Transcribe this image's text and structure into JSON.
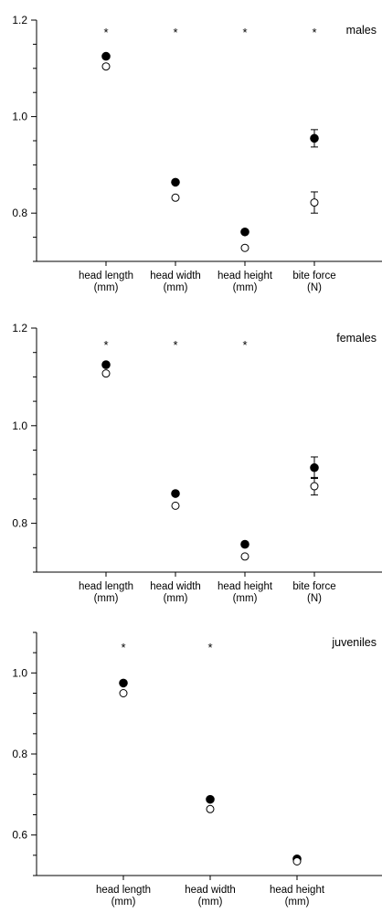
{
  "chart_data": [
    {
      "type": "scatter",
      "panel_label": "males",
      "categories": [
        "head length",
        "head width",
        "head height",
        "bite force"
      ],
      "category_units": [
        "(mm)",
        "(mm)",
        "(mm)",
        "(N)"
      ],
      "ylim": [
        0.7,
        1.2
      ],
      "yticks": [
        0.8,
        1.0,
        1.2
      ],
      "ytick_labels": [
        "0.8",
        "1.0",
        "1.2"
      ],
      "significance": [
        "*",
        "*",
        "*",
        "*"
      ],
      "series": [
        {
          "marker": "filled-circle",
          "values": [
            1.125,
            0.864,
            0.761,
            0.955
          ],
          "err": [
            null,
            null,
            null,
            0.018
          ]
        },
        {
          "marker": "open-circle",
          "values": [
            1.104,
            0.832,
            0.728,
            0.822
          ],
          "err": [
            null,
            null,
            null,
            0.022
          ]
        }
      ]
    },
    {
      "type": "scatter",
      "panel_label": "females",
      "categories": [
        "head length",
        "head width",
        "head height",
        "bite force"
      ],
      "category_units": [
        "(mm)",
        "(mm)",
        "(mm)",
        "(N)"
      ],
      "ylim": [
        0.7,
        1.2
      ],
      "yticks": [
        0.8,
        1.0,
        1.2
      ],
      "ytick_labels": [
        "0.8",
        "1.0",
        "1.2"
      ],
      "significance": [
        "*",
        "*",
        "*",
        ""
      ],
      "series": [
        {
          "marker": "filled-circle",
          "values": [
            1.125,
            0.861,
            0.757,
            0.914
          ],
          "err": [
            null,
            null,
            null,
            0.022
          ]
        },
        {
          "marker": "open-circle",
          "values": [
            1.107,
            0.836,
            0.732,
            0.876
          ],
          "err": [
            null,
            null,
            null,
            0.018
          ]
        }
      ]
    },
    {
      "type": "scatter",
      "panel_label": "juveniles",
      "categories": [
        "head length",
        "head width",
        "head height"
      ],
      "category_units": [
        "(mm)",
        "(mm)",
        "(mm)"
      ],
      "ylim": [
        0.5,
        1.1
      ],
      "yticks": [
        0.6,
        0.8,
        1.0
      ],
      "ytick_labels": [
        "0.6",
        "0.8",
        "1.0"
      ],
      "significance": [
        "*",
        "*",
        ""
      ],
      "series": [
        {
          "marker": "filled-circle",
          "values": [
            0.975,
            0.688,
            0.541
          ],
          "err": [
            null,
            null,
            null
          ]
        },
        {
          "marker": "open-circle",
          "values": [
            0.95,
            0.664,
            0.535
          ],
          "err": [
            null,
            null,
            null
          ]
        }
      ]
    }
  ]
}
